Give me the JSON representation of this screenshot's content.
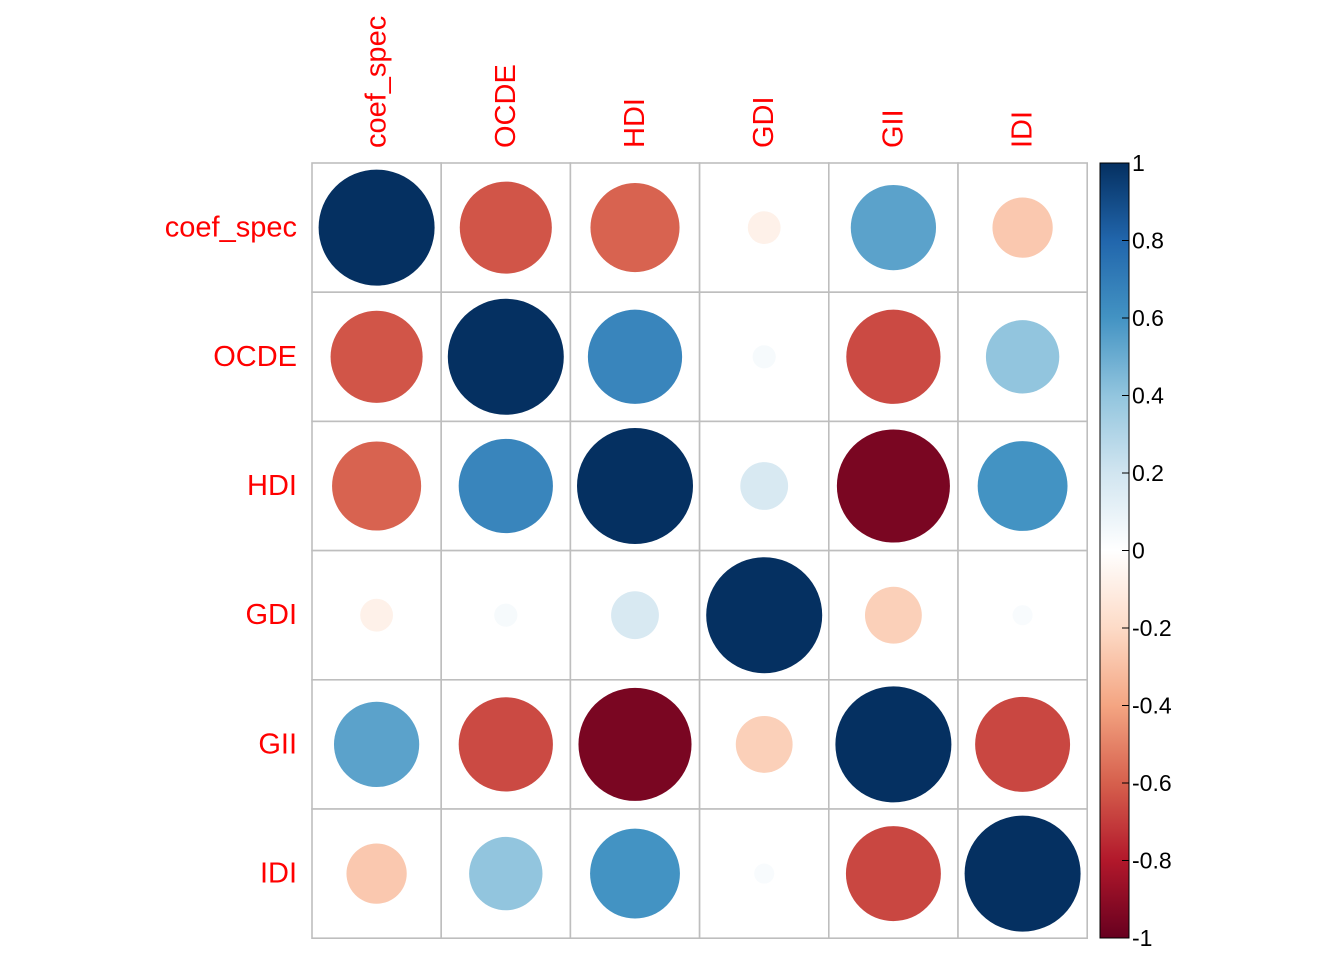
{
  "chart_data": {
    "type": "heatmap",
    "variables": [
      "coef_spec",
      "OCDE",
      "HDI",
      "GDI",
      "GII",
      "IDI"
    ],
    "matrix": [
      [
        1.0,
        -0.63,
        -0.59,
        -0.08,
        0.54,
        -0.27
      ],
      [
        -0.63,
        1.0,
        0.66,
        0.04,
        -0.66,
        0.4
      ],
      [
        -0.59,
        0.66,
        1.0,
        0.17,
        -0.95,
        0.6
      ],
      [
        -0.08,
        0.04,
        0.17,
        1.0,
        -0.24,
        0.03
      ],
      [
        0.54,
        -0.66,
        -0.95,
        -0.24,
        1.0,
        -0.67
      ],
      [
        -0.27,
        0.4,
        0.6,
        0.03,
        -0.67,
        1.0
      ]
    ],
    "colorbar": {
      "ticks": [
        "1",
        "0.8",
        "0.6",
        "0.4",
        "0.2",
        "0",
        "-0.2",
        "-0.4",
        "-0.6",
        "-0.8",
        "-1"
      ],
      "range": [
        -1,
        1
      ]
    },
    "colors": {
      "label_color": "#ff0000",
      "grid_color": "#bebebe",
      "tick_text_color": "#000000",
      "palette": [
        "#67001f",
        "#b2182b",
        "#d6604d",
        "#f4a582",
        "#fddbc7",
        "#ffffff",
        "#d1e5f0",
        "#92c5de",
        "#4393c3",
        "#2166ac",
        "#053061"
      ]
    }
  }
}
